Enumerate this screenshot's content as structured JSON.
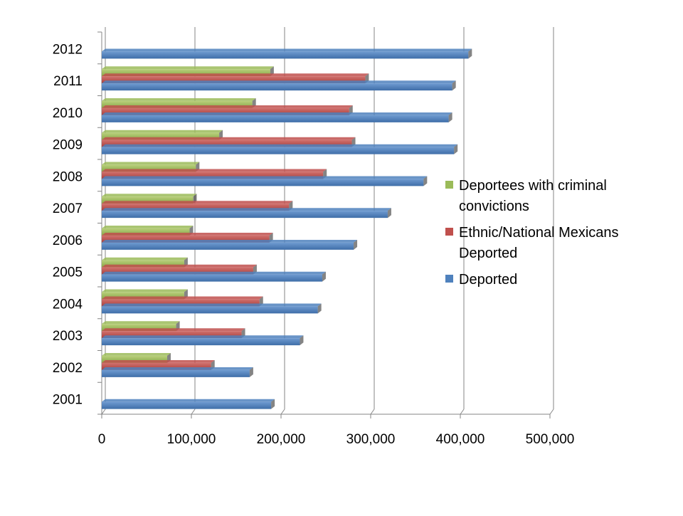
{
  "chart_data": {
    "type": "bar",
    "orientation": "horizontal",
    "style": "3d-clustered",
    "title": "",
    "xlabel": "",
    "ylabel": "",
    "categories": [
      "2001",
      "2002",
      "2003",
      "2004",
      "2005",
      "2006",
      "2007",
      "2008",
      "2009",
      "2010",
      "2011",
      "2012"
    ],
    "xlim": [
      0,
      500000
    ],
    "x_ticks": [
      0,
      100000,
      200000,
      300000,
      400000,
      500000
    ],
    "x_tick_labels": [
      "0",
      "100,000",
      "200,000",
      "300,000",
      "400,000",
      "500,000"
    ],
    "grid": "vertical major gridlines",
    "legend_position": "right",
    "series": [
      {
        "name": "Deportees with criminal convictions",
        "color": "#9BBB59",
        "values": [
          null,
          73000,
          83000,
          92000,
          92000,
          98000,
          102000,
          105000,
          131000,
          168000,
          188000,
          null
        ]
      },
      {
        "name": "Ethnic/National Mexicans Deported",
        "color": "#C0504D",
        "values": [
          null,
          122000,
          156000,
          176000,
          169000,
          187000,
          209000,
          247000,
          279000,
          276000,
          294000,
          null
        ]
      },
      {
        "name": "Deported",
        "color": "#4F81BD",
        "values": [
          189000,
          165000,
          221000,
          241000,
          246000,
          281000,
          319000,
          359000,
          393000,
          387000,
          391000,
          409000
        ]
      }
    ]
  }
}
